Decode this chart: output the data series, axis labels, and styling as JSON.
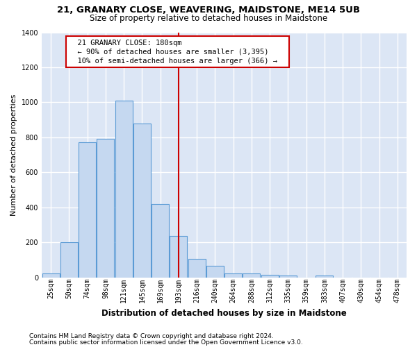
{
  "title1": "21, GRANARY CLOSE, WEAVERING, MAIDSTONE, ME14 5UB",
  "title2": "Size of property relative to detached houses in Maidstone",
  "xlabel": "Distribution of detached houses by size in Maidstone",
  "ylabel": "Number of detached properties",
  "footnote1": "Contains HM Land Registry data © Crown copyright and database right 2024.",
  "footnote2": "Contains public sector information licensed under the Open Government Licence v3.0.",
  "categories": [
    "25sqm",
    "50sqm",
    "74sqm",
    "98sqm",
    "121sqm",
    "145sqm",
    "169sqm",
    "193sqm",
    "216sqm",
    "240sqm",
    "264sqm",
    "288sqm",
    "312sqm",
    "335sqm",
    "359sqm",
    "383sqm",
    "407sqm",
    "430sqm",
    "454sqm",
    "478sqm"
  ],
  "values": [
    20,
    200,
    770,
    790,
    1010,
    880,
    420,
    235,
    105,
    65,
    20,
    20,
    15,
    10,
    0,
    10,
    0,
    0,
    0,
    0
  ],
  "bar_color": "#c5d8f0",
  "bar_edge_color": "#5b9bd5",
  "red_line_x": 7.0,
  "annotation_text": "  21 GRANARY CLOSE: 180sqm  \n  ← 90% of detached houses are smaller (3,395)  \n  10% of semi-detached houses are larger (366) →  ",
  "annotation_box_color": "#ffffff",
  "annotation_border_color": "#cc0000",
  "ylim": [
    0,
    1400
  ],
  "background_color": "#dce6f5",
  "grid_color": "#ffffff",
  "title1_fontsize": 9.5,
  "title2_fontsize": 8.5,
  "xlabel_fontsize": 8.5,
  "ylabel_fontsize": 8,
  "footnote_fontsize": 6.5,
  "tick_fontsize": 7,
  "annot_fontsize": 7.5
}
